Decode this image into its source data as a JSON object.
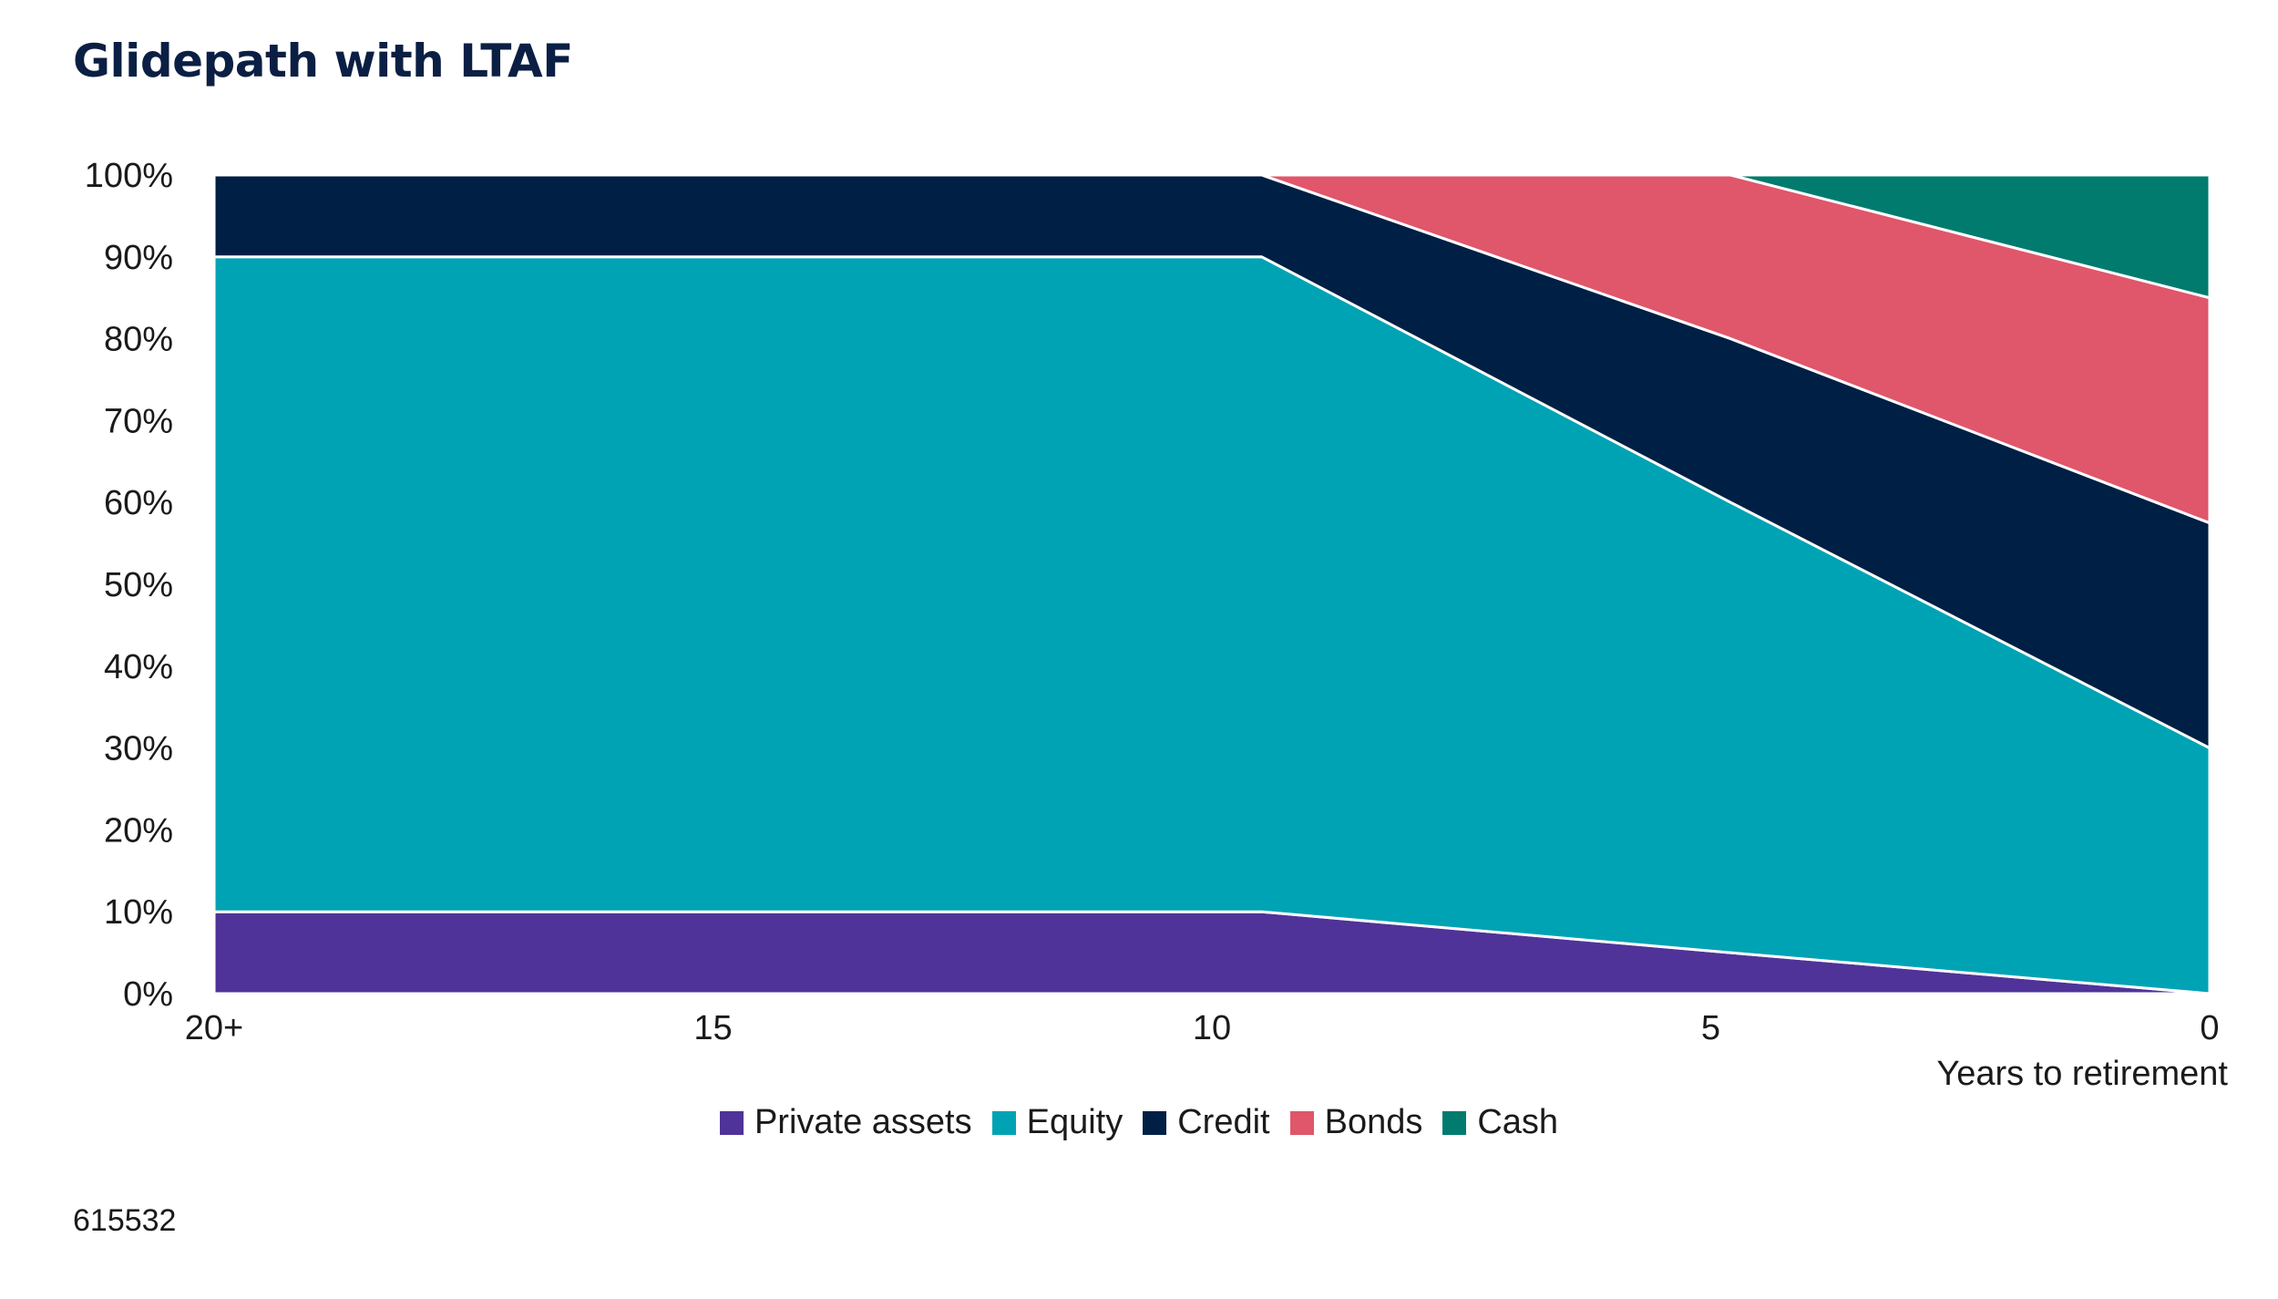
{
  "title": "Glidepath with LTAF",
  "footnote": "615532",
  "chart_data": {
    "type": "area",
    "stacked": true,
    "title": "Glidepath with LTAF",
    "xlabel": "Years to retirement",
    "ylabel": "",
    "x_points": [
      20,
      15,
      9.5,
      4.8,
      0
    ],
    "x_ticks": [
      {
        "value": 20,
        "label": "20+"
      },
      {
        "value": 15,
        "label": "15"
      },
      {
        "value": 10,
        "label": "10"
      },
      {
        "value": 5,
        "label": "5"
      },
      {
        "value": 0,
        "label": "0"
      }
    ],
    "x_reversed": true,
    "ylim": [
      0,
      100
    ],
    "y_ticks": [
      "0%",
      "10%",
      "20%",
      "30%",
      "40%",
      "50%",
      "60%",
      "70%",
      "80%",
      "90%",
      "100%"
    ],
    "series": [
      {
        "name": "Private assets",
        "color": "#4f3398",
        "values": [
          10,
          10,
          10,
          5,
          0
        ]
      },
      {
        "name": "Equity",
        "color": "#00a3b4",
        "values": [
          80,
          80,
          80,
          55,
          30
        ]
      },
      {
        "name": "Credit",
        "color": "#001f44",
        "values": [
          10,
          10,
          10,
          20,
          27.5
        ]
      },
      {
        "name": "Bonds",
        "color": "#e0566b",
        "values": [
          0,
          0,
          0,
          20,
          27.5
        ]
      },
      {
        "name": "Cash",
        "color": "#007b6e",
        "values": [
          0,
          0,
          0,
          0,
          15
        ]
      }
    ],
    "legend_position": "bottom-center",
    "grid": false
  }
}
